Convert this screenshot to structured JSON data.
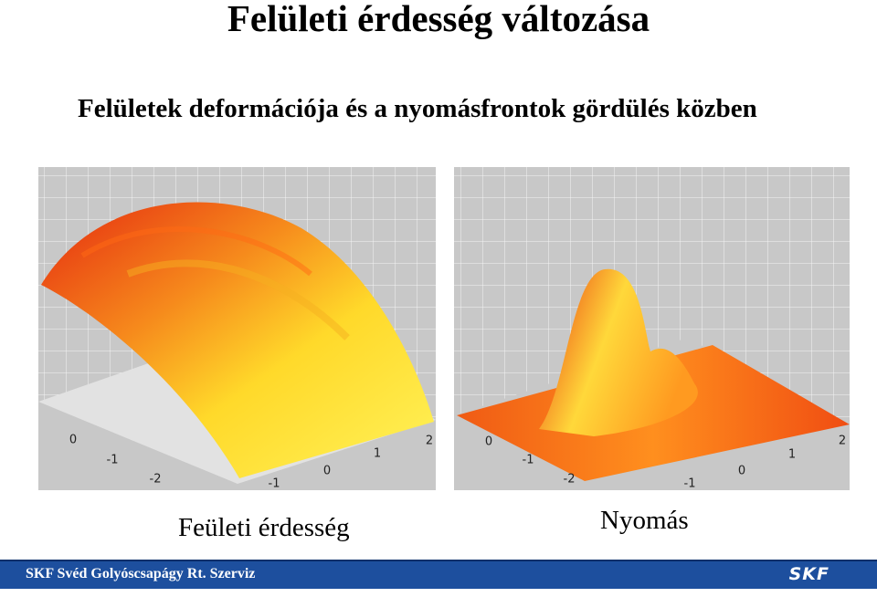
{
  "header": {
    "title": "Felületi érdesség változása",
    "subtitle": "Felületek deformációja és a nyomásfrontok gördülés közben"
  },
  "figures": [
    {
      "caption": "Feületi érdesség",
      "axis_labels": [
        "0",
        "-1",
        "-2",
        "-1",
        "0",
        "1",
        "2"
      ]
    },
    {
      "caption": "Nyomás",
      "axis_labels": [
        "0",
        "-1",
        "-2",
        "-1",
        "0",
        "1",
        "2"
      ]
    }
  ],
  "footer": {
    "text": "SKF Svéd Golyóscsapágy Rt. Szerviz",
    "logo": "SKF"
  }
}
